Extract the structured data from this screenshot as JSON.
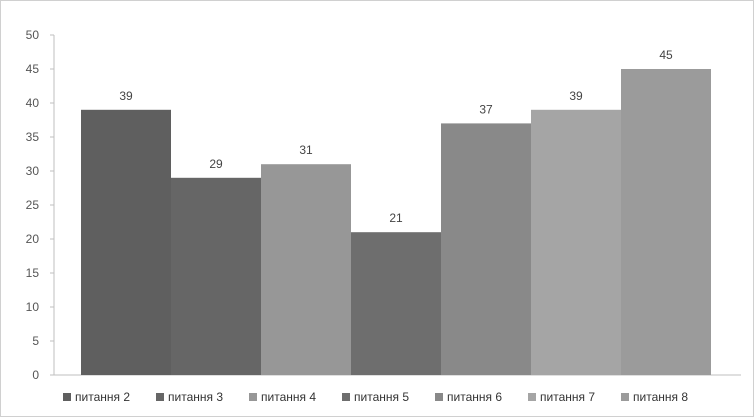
{
  "chart_data": {
    "type": "bar",
    "categories": [
      "питання 2",
      "питання 3",
      "питання 4",
      "питання 5",
      "питання 6",
      "питання 7",
      "питання 8"
    ],
    "values": [
      39,
      29,
      31,
      21,
      37,
      39,
      45
    ],
    "colors": [
      "#5f5f5f",
      "#666666",
      "#979797",
      "#6e6e6e",
      "#898989",
      "#a5a5a5",
      "#9b9b9b"
    ],
    "ylim": [
      0,
      50
    ],
    "yticks": [
      0,
      5,
      10,
      15,
      20,
      25,
      30,
      35,
      40,
      45,
      50
    ],
    "grid": false,
    "legend_position": "bottom",
    "title": "",
    "xlabel": "",
    "ylabel": ""
  }
}
